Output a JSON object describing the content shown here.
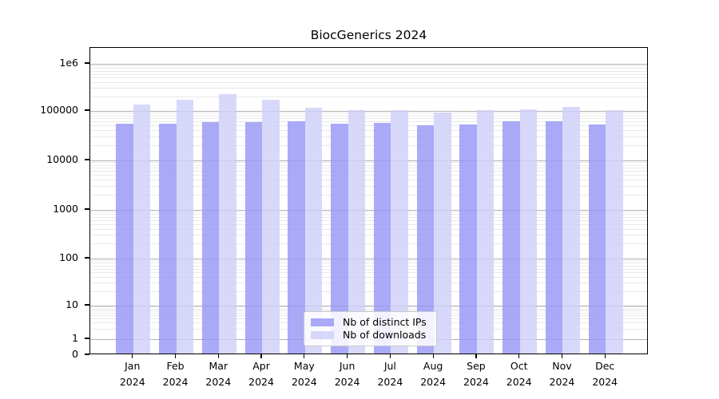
{
  "title": "BiocGenerics 2024",
  "chart_data": {
    "type": "bar",
    "title": "BiocGenerics 2024",
    "yscale": "symlog",
    "grid": true,
    "legend_position": "lower center",
    "ylim": [
      0,
      2000000
    ],
    "categories": [
      "Jan",
      "Feb",
      "Mar",
      "Apr",
      "May",
      "Jun",
      "Jul",
      "Aug",
      "Sep",
      "Oct",
      "Nov",
      "Dec"
    ],
    "xtick_year": "2024",
    "ytick_values": [
      0,
      1,
      10,
      100,
      1000,
      10000,
      100000,
      1000000
    ],
    "ytick_labels": [
      "0",
      "1",
      "10",
      "100",
      "1000",
      "10000",
      "100000",
      "1e6"
    ],
    "series": [
      {
        "name": "Nb of distinct IPs",
        "color": "#9797f6",
        "values": [
          55000,
          55000,
          59000,
          60000,
          62000,
          55000,
          58000,
          50500,
          54000,
          61000,
          61500,
          52500
        ]
      },
      {
        "name": "Nb of downloads",
        "color": "#cfcff9",
        "values": [
          136000,
          170000,
          226000,
          172000,
          119000,
          102000,
          105000,
          93000,
          102000,
          110000,
          122000,
          102000
        ]
      }
    ]
  },
  "colors": {
    "major_grid": "#b2b2b2",
    "minor_grid": "#e9e9e9",
    "axis": "#000000",
    "legend_border": "#cccccc"
  }
}
